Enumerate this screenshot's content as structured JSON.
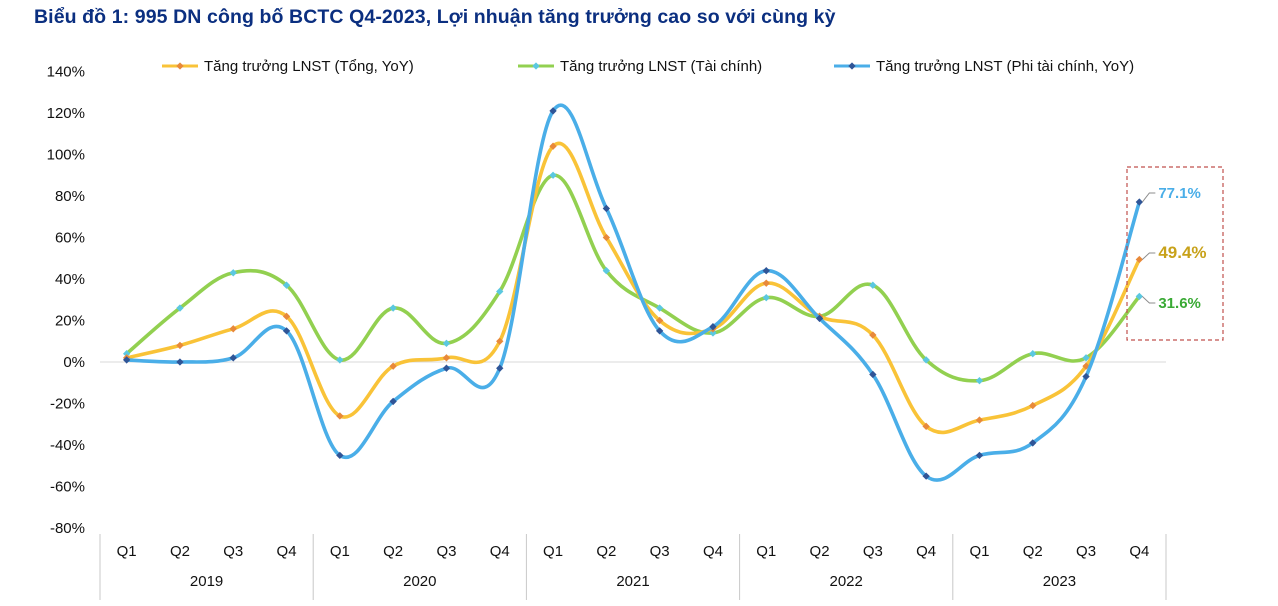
{
  "title": "Biểu đồ 1: 995 DN công bố BCTC Q4-2023, Lợi nhuận tăng trưởng cao so với cùng kỳ",
  "chart_data": {
    "type": "line",
    "title": "Biểu đồ 1: 995 DN công bố BCTC Q4-2023, Lợi nhuận tăng trưởng cao so với cùng kỳ",
    "xlabel": "",
    "ylabel": "",
    "ylim": [
      -80,
      140
    ],
    "y_ticks": [
      -80,
      -60,
      -40,
      -20,
      0,
      20,
      40,
      60,
      80,
      100,
      120,
      140
    ],
    "y_tick_suffix": "%",
    "grid": false,
    "legend": "top",
    "categories": [
      "Q1",
      "Q2",
      "Q3",
      "Q4",
      "Q1",
      "Q2",
      "Q3",
      "Q4",
      "Q1",
      "Q2",
      "Q3",
      "Q4",
      "Q1",
      "Q2",
      "Q3",
      "Q4",
      "Q1",
      "Q2",
      "Q3",
      "Q4"
    ],
    "year_groups": [
      "2019",
      "2020",
      "2021",
      "2022",
      "2023"
    ],
    "series": [
      {
        "name": "Tăng trưởng LNST (Tổng, YoY)",
        "color": "#f9c338",
        "marker_color": "#e8893a",
        "values": [
          2,
          8,
          16,
          22,
          -26,
          -2,
          2,
          10,
          104,
          60,
          20,
          16,
          38,
          22,
          13,
          -31,
          -28,
          -21,
          -2,
          49.4
        ]
      },
      {
        "name": "Tăng trưởng LNST (Tài chính)",
        "color": "#92d050",
        "marker_color": "#5bc8e0",
        "values": [
          4,
          26,
          43,
          37,
          1,
          26,
          9,
          34,
          90,
          44,
          26,
          14,
          31,
          22,
          37,
          1,
          -9,
          4,
          2,
          31.6
        ]
      },
      {
        "name": "Tăng trưởng LNST (Phi tài chính, YoY)",
        "color": "#4aaee8",
        "marker_color": "#2f5597",
        "values": [
          1,
          0,
          2,
          15,
          -45,
          -19,
          -3,
          -3,
          121,
          74,
          15,
          17,
          44,
          21,
          -6,
          -55,
          -45,
          -39,
          -7,
          77.1
        ]
      }
    ],
    "annotations": [
      {
        "text": "77.1%",
        "color": "#4aaee8"
      },
      {
        "text": "49.4%",
        "color": "#c8a21a"
      },
      {
        "text": "31.6%",
        "color": "#3aaa35"
      }
    ]
  }
}
